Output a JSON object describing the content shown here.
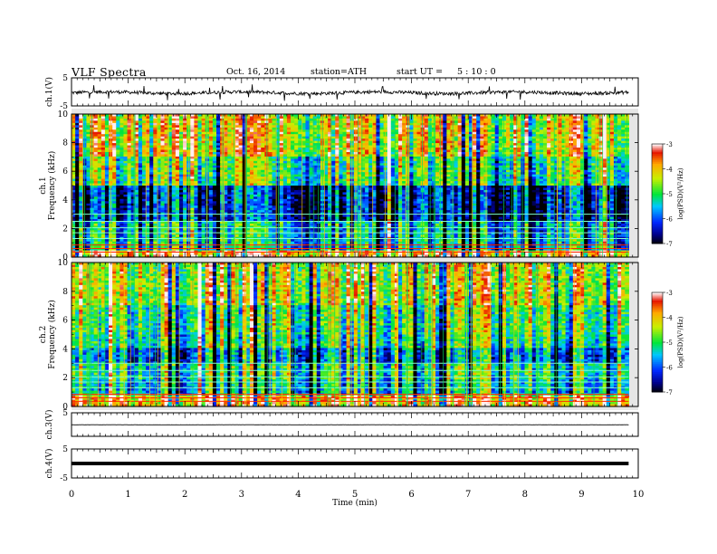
{
  "header": {
    "title": "VLF  Spectra",
    "date": "Oct. 16, 2014",
    "station": "station=ATH",
    "start_label": "start  UT  =",
    "start_time": "5  : 10 : 0"
  },
  "chart_data": {
    "type": "multi-panel",
    "x": {
      "label": "Time  (min)",
      "ticks": [
        "0",
        "1",
        "2",
        "3",
        "4",
        "5",
        "6",
        "7",
        "8",
        "9",
        "10"
      ],
      "range": [
        0,
        10
      ],
      "data_end": 9.83
    },
    "panels": [
      {
        "type": "line",
        "name": "ch1-waveform",
        "ylabel": "ch.1(V)",
        "ylim": [
          -5,
          5
        ],
        "yticks": [
          "5",
          "-5"
        ],
        "baseline": -0.3,
        "noise": 1.2,
        "color": "#000000"
      },
      {
        "type": "heatmap",
        "name": "ch1-spectrogram",
        "ylabel_top": "ch.1",
        "ylabel": "Frequency  (kHz)",
        "ylim": [
          0,
          10
        ],
        "yticks": [
          "0",
          "2",
          "4",
          "6",
          "8",
          "10"
        ],
        "colorbar": {
          "label": "log(PSD)(V²/Hz)",
          "ticks": [
            "-3",
            "-4",
            "-5",
            "-6",
            "-7"
          ],
          "range": [
            -7,
            -3
          ]
        }
      },
      {
        "type": "heatmap",
        "name": "ch2-spectrogram",
        "ylabel_top": "ch.2",
        "ylabel": "Frequency  (kHz)",
        "ylim": [
          0,
          10
        ],
        "yticks": [
          "0",
          "2",
          "4",
          "6",
          "8",
          "10"
        ],
        "colorbar": {
          "label": "log(PSD)(V²/Hz)",
          "ticks": [
            "-3",
            "-4",
            "-5",
            "-6",
            "-7"
          ],
          "range": [
            -7,
            -3
          ]
        }
      },
      {
        "type": "line",
        "name": "ch3-waveform",
        "ylabel": "ch.3(V)",
        "ylim": [
          -5,
          5
        ],
        "yticks": [
          "5"
        ],
        "baseline": -0.1,
        "noise": 0.05,
        "color": "#000000"
      },
      {
        "type": "line",
        "name": "ch4-waveform",
        "ylabel": "ch.4(V)",
        "ylim": [
          -5,
          5
        ],
        "yticks": [
          "5",
          "-5"
        ],
        "baseline": 0.0,
        "noise": 0.0,
        "color": "#000000"
      }
    ]
  }
}
